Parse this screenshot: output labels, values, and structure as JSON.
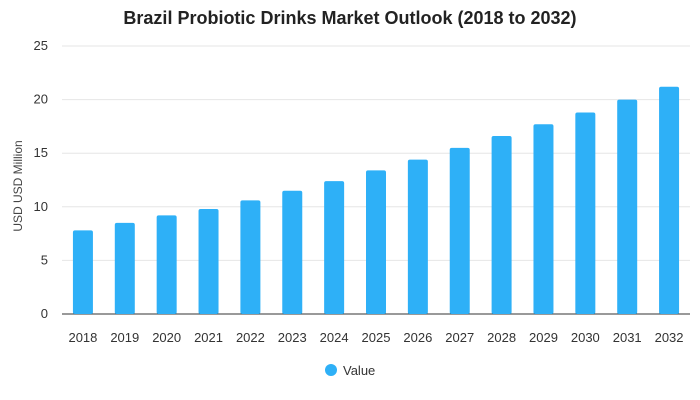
{
  "chart_data": {
    "type": "bar",
    "title": "Brazil Probiotic Drinks Market Outlook (2018 to 2032)",
    "xlabel": "",
    "ylabel": "USD USD Million",
    "categories": [
      "2018",
      "2019",
      "2020",
      "2021",
      "2022",
      "2023",
      "2024",
      "2025",
      "2026",
      "2027",
      "2028",
      "2029",
      "2030",
      "2031",
      "2032"
    ],
    "series": [
      {
        "name": "Value",
        "values": [
          7.8,
          8.5,
          9.2,
          9.8,
          10.6,
          11.5,
          12.4,
          13.4,
          14.4,
          15.5,
          16.6,
          17.7,
          18.8,
          20.0,
          21.2
        ]
      }
    ],
    "ylim": [
      0,
      25
    ],
    "yticks": [
      "0",
      "5",
      "10",
      "15",
      "20",
      "25"
    ],
    "grid": true,
    "legend": "bottom-center",
    "colors": {
      "bar": "#2eb0f7",
      "grid": "#e6e6e6",
      "axis": "#333333"
    }
  }
}
